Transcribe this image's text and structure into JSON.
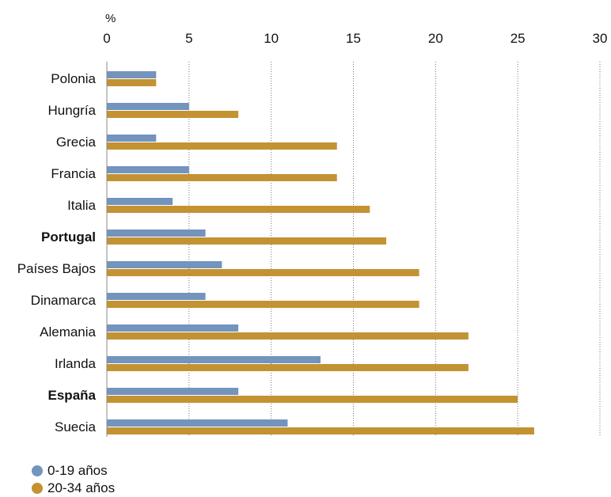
{
  "chart_data": {
    "type": "bar",
    "orientation": "horizontal",
    "unit": "%",
    "categories": [
      "Polonia",
      "Hungría",
      "Grecia",
      "Francia",
      "Italia",
      "Portugal",
      "Países Bajos",
      "Dinamarca",
      "Alemania",
      "Irlanda",
      "España",
      "Suecia"
    ],
    "bold_categories": [
      "Portugal",
      "España"
    ],
    "series": [
      {
        "name": "0-19 años",
        "color": "#7394bd",
        "values": [
          3,
          5,
          3,
          5,
          4,
          6,
          7,
          6,
          8,
          13,
          8,
          11
        ]
      },
      {
        "name": "20-34 años",
        "color": "#c39232",
        "values": [
          3,
          8,
          14,
          14,
          16,
          17,
          19,
          19,
          22,
          22,
          25,
          26
        ]
      }
    ],
    "xlim": [
      0,
      30
    ],
    "xticks": [
      0,
      5,
      10,
      15,
      20,
      25,
      30
    ],
    "grid": "vertical-dotted",
    "legend_position": "bottom-left"
  }
}
